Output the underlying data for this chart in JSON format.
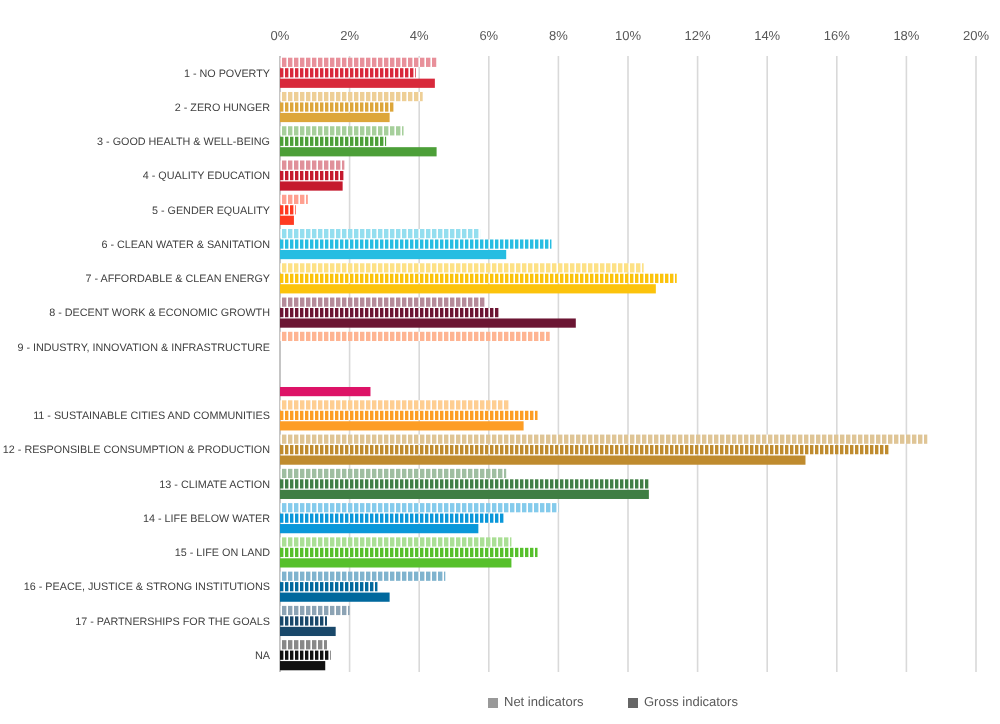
{
  "chart_data": {
    "type": "bar",
    "orientation": "horizontal",
    "categories": [
      "1 - NO POVERTY",
      "2 - ZERO HUNGER",
      "3 - GOOD HEALTH & WELL-BEING",
      "4 - QUALITY EDUCATION",
      "5 - GENDER EQUALITY",
      "6 - CLEAN WATER & SANITATION",
      "7 - AFFORDABLE & CLEAN ENERGY",
      "8 - DECENT WORK & ECONOMIC GROWTH",
      "9 - INDUSTRY, INNOVATION & INFRASTRUCTURE",
      null,
      "11 - SUSTAINABLE CITIES AND COMMUNITIES",
      "12 - RESPONSIBLE CONSUMPTION & PRODUCTION",
      "13 - CLIMATE ACTION",
      "14 - LIFE BELOW WATER",
      "15 - LIFE ON LAND",
      "16 - PEACE, JUSTICE & STRONG INSTITUTIONS",
      "17 - PARTNERSHIPS FOR THE GOALS",
      "NA"
    ],
    "series": [
      {
        "name": "Net indicators",
        "color": "#999999",
        "values": [
          4.5,
          4.1,
          3.55,
          1.85,
          0.8,
          5.75,
          10.45,
          5.9,
          7.75,
          null,
          6.6,
          18.6,
          6.5,
          8.0,
          6.65,
          4.75,
          2.0,
          1.35
        ],
        "colors": [
          "#e8909a",
          "#eecf96",
          "#a6cf9b",
          "#e0909a",
          "#ffa090",
          "#93deef",
          "#fde185",
          "#b58a99",
          "#feb492",
          "#ee89b3",
          "#fece91",
          "#dfc596",
          "#9fbea1",
          "#84cbec",
          "#aadf95",
          "#7fb3ce",
          "#8ca3b4",
          "#888888"
        ]
      },
      {
        "name": "Gross indicators",
        "color": "#666666",
        "values": [
          3.9,
          3.3,
          3.05,
          1.85,
          0.45,
          7.8,
          11.4,
          6.3,
          null,
          null,
          7.4,
          17.5,
          10.6,
          6.45,
          7.4,
          2.8,
          1.35,
          1.45
        ],
        "colors": [
          "#d8293b",
          "#dda63a",
          "#4c9f38",
          "#c5192d",
          "#ff3a21",
          "#26bde2",
          "#fcc30b",
          "#6b1533",
          "#fd6925",
          "#dd1367",
          "#fd9d24",
          "#bf8b2e",
          "#3f7e44",
          "#0a97d9",
          "#56c02b",
          "#00689d",
          "#19486a",
          "#111111"
        ]
      },
      {
        "values": [
          4.45,
          3.15,
          4.5,
          1.8,
          0.4,
          6.5,
          10.8,
          8.5,
          null,
          2.6,
          7.0,
          15.1,
          10.6,
          5.7,
          6.65,
          3.15,
          1.6,
          1.3
        ],
        "colors": [
          "#d8293b",
          "#dda63a",
          "#4c9f38",
          "#c5192d",
          "#ff3a21",
          "#26bde2",
          "#fcc30b",
          "#6b1533",
          "#fd6925",
          "#dd1367",
          "#fd9d24",
          "#bf8b2e",
          "#3f7e44",
          "#0a97d9",
          "#56c02b",
          "#00689d",
          "#19486a",
          "#111111"
        ]
      }
    ],
    "xlim": [
      0,
      20
    ],
    "xticks": [
      {
        "value": 0,
        "label": "0%"
      },
      {
        "value": 2,
        "label": "2%"
      },
      {
        "value": 4,
        "label": "4%"
      },
      {
        "value": 6,
        "label": "6%"
      },
      {
        "value": 8,
        "label": "8%"
      },
      {
        "value": 10,
        "label": "10%"
      },
      {
        "value": 12,
        "label": "12%"
      },
      {
        "value": 14,
        "label": "14%"
      },
      {
        "value": 16,
        "label": "16%"
      },
      {
        "value": 18,
        "label": "18%"
      },
      {
        "value": 20,
        "label": "20%"
      }
    ],
    "grid": "x",
    "legend": "bottom"
  }
}
